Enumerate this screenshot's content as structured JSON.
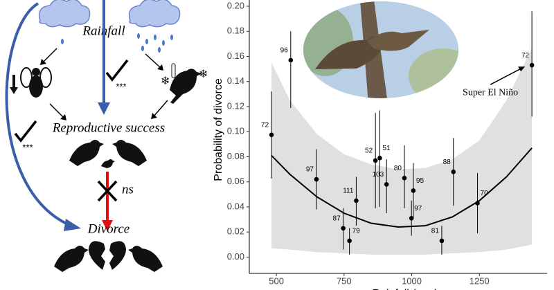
{
  "diagram": {
    "rainfall": "Rainfall",
    "reproductive_success": "Reproductive success",
    "divorce": "Divorce",
    "left_sig": "***",
    "center_sig": "***",
    "ns": "ns"
  },
  "chart_data": {
    "type": "scatter",
    "x_label": "Rainfall (mm)",
    "y_label": "Probability of divorce",
    "annotation": "Super El Niño",
    "x": [
      482,
      553,
      648,
      795,
      747,
      770,
      866,
      882,
      907,
      973,
      1006,
      999,
      1154,
      1111,
      1243,
      1444
    ],
    "values": [
      0.0975,
      0.157,
      0.062,
      0.045,
      0.023,
      0.013,
      0.077,
      0.079,
      0.058,
      0.063,
      0.053,
      0.031,
      0.068,
      0.013,
      0.043,
      0.153
    ],
    "lower": [
      0.0626,
      0.119,
      0.038,
      0.025,
      0.006,
      0.002,
      0.039,
      0.04,
      0.035,
      0.039,
      0.031,
      0.017,
      0.041,
      0.002,
      0.019,
      0.112
    ],
    "upper": [
      0.132,
      0.18,
      0.086,
      0.064,
      0.039,
      0.023,
      0.115,
      0.117,
      0.078,
      0.089,
      0.075,
      0.045,
      0.095,
      0.025,
      0.067,
      0.196
    ],
    "n": [
      72,
      96,
      97,
      111,
      87,
      79,
      52,
      51,
      103,
      80,
      95,
      97,
      88,
      81,
      70,
      72
    ],
    "fit": {
      "x": [
        482,
        550,
        650,
        750,
        850,
        950,
        1050,
        1150,
        1250,
        1350,
        1444
      ],
      "y": [
        0.081,
        0.066,
        0.048,
        0.035,
        0.027,
        0.024,
        0.025,
        0.032,
        0.045,
        0.064,
        0.087
      ],
      "upper": [
        0.155,
        0.125,
        0.098,
        0.082,
        0.074,
        0.07,
        0.071,
        0.078,
        0.093,
        0.125,
        0.167
      ],
      "lower": [
        0.007,
        0.006,
        0.004,
        0.003,
        0.002,
        0.002,
        0.002,
        0.003,
        0.004,
        0.006,
        0.01
      ]
    },
    "color": "#000000",
    "ribbon_color": "#e0e0e0",
    "xlim": [
      400,
      1500
    ],
    "ylim": [
      -0.013,
      0.205
    ],
    "xticks": [
      500,
      750,
      1000,
      1250
    ],
    "yticks": [
      {
        "value": 0,
        "label": "0.00"
      },
      {
        "value": 0.02,
        "label": "0.02"
      },
      {
        "value": 0.04,
        "label": "0.04"
      },
      {
        "value": 0.06,
        "label": "0.06"
      },
      {
        "value": 0.08,
        "label": "0.08"
      },
      {
        "value": 0.1,
        "label": "0.10"
      },
      {
        "value": 0.12,
        "label": "0.12"
      },
      {
        "value": 0.14,
        "label": "0.14"
      },
      {
        "value": 0.16,
        "label": "0.16"
      },
      {
        "value": 0.18,
        "label": "0.18"
      },
      {
        "value": 0.2,
        "label": "0.20"
      }
    ]
  }
}
